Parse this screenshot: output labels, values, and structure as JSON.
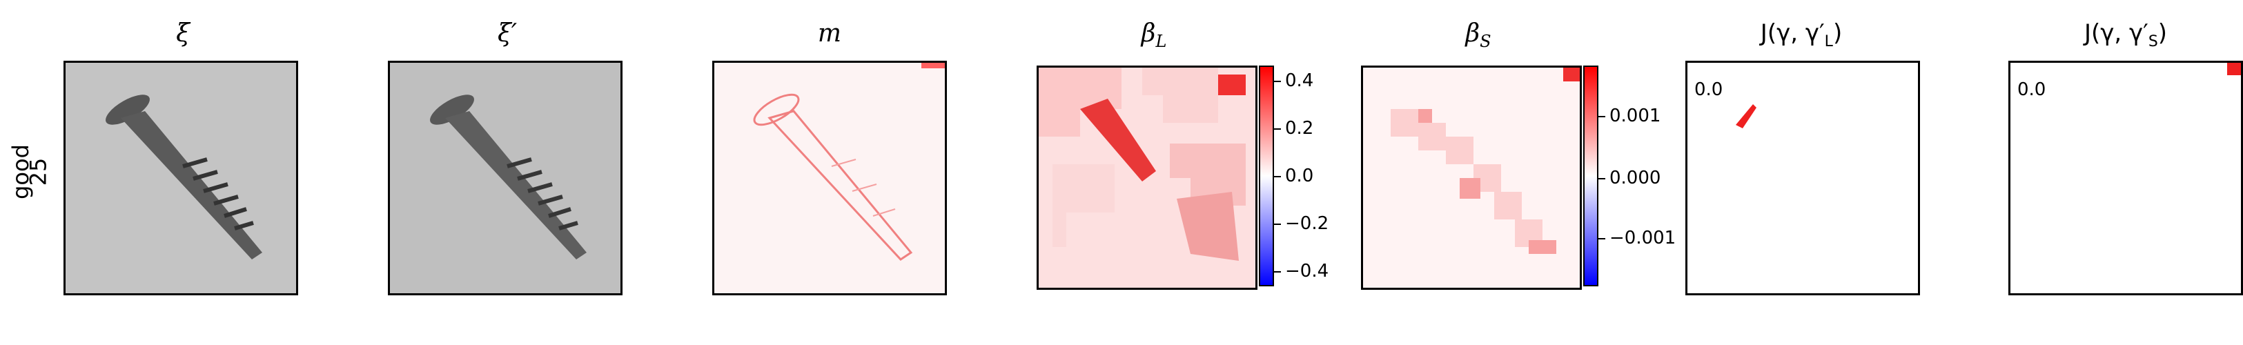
{
  "row_label": {
    "line1": "good",
    "line2": "25"
  },
  "panels": {
    "xi": {
      "title": "ξ"
    },
    "xi_prime": {
      "title": "ξ′"
    },
    "m": {
      "title": "m"
    },
    "beta_L": {
      "title": "β",
      "subscript": "L",
      "colorbar_ticks": [
        "0.4",
        "0.2",
        "0.0",
        "−0.2",
        "−0.4"
      ]
    },
    "beta_S": {
      "title": "β",
      "subscript": "S",
      "colorbar_ticks": [
        "0.001",
        "0.000",
        "−0.001"
      ]
    },
    "J_L": {
      "title": "J(γ, γ′",
      "subscript": "L",
      "value": "0.0"
    },
    "J_S": {
      "title": "J(γ, γ′",
      "subscript": "S",
      "value": "0.0"
    }
  },
  "colors": {
    "positive": "#ff0000",
    "negative": "#0000ff",
    "neutral": "#ffffff",
    "image_gray": "#c8c8c8"
  }
}
